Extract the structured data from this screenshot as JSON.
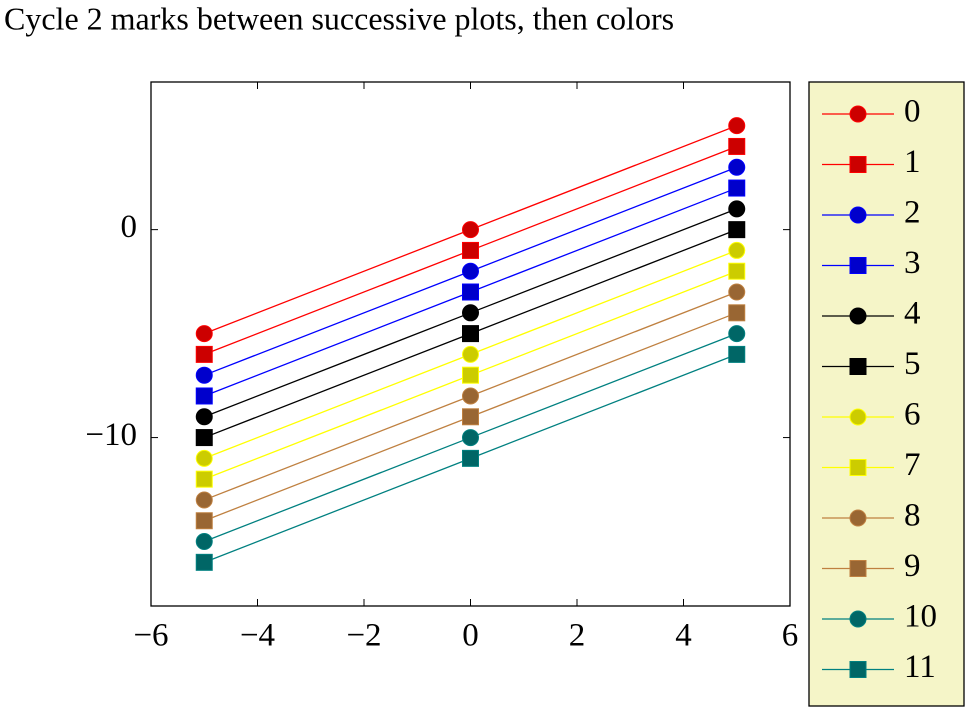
{
  "chart_data": {
    "type": "line",
    "title": "Cycle 2 marks between successive plots, then colors",
    "x": [
      -5,
      0,
      5
    ],
    "series": [
      {
        "name": "0",
        "color": "#ff0000",
        "marker": "circle",
        "values": [
          -5,
          0,
          5
        ]
      },
      {
        "name": "1",
        "color": "#ff0000",
        "marker": "square",
        "values": [
          -6,
          -1,
          4
        ]
      },
      {
        "name": "2",
        "color": "#0000ff",
        "marker": "circle",
        "values": [
          -7,
          -2,
          3
        ]
      },
      {
        "name": "3",
        "color": "#0000ff",
        "marker": "square",
        "values": [
          -8,
          -3,
          2
        ]
      },
      {
        "name": "4",
        "color": "#000000",
        "marker": "circle",
        "values": [
          -9,
          -4,
          1
        ]
      },
      {
        "name": "5",
        "color": "#000000",
        "marker": "square",
        "values": [
          -10,
          -5,
          0
        ]
      },
      {
        "name": "6",
        "color": "#ffff00",
        "marker": "circle",
        "values": [
          -11,
          -6,
          -1
        ]
      },
      {
        "name": "7",
        "color": "#ffff00",
        "marker": "square",
        "values": [
          -12,
          -7,
          -2
        ]
      },
      {
        "name": "8",
        "color": "#bf8040",
        "marker": "circle",
        "values": [
          -13,
          -8,
          -3
        ]
      },
      {
        "name": "9",
        "color": "#bf8040",
        "marker": "square",
        "values": [
          -14,
          -9,
          -4
        ]
      },
      {
        "name": "10",
        "color": "#008080",
        "marker": "circle",
        "values": [
          -15,
          -10,
          -5
        ]
      },
      {
        "name": "11",
        "color": "#008080",
        "marker": "square",
        "values": [
          -16,
          -11,
          -6
        ]
      }
    ],
    "xlim": [
      -6,
      6
    ],
    "xticks": [
      {
        "value": -6,
        "label": "−6"
      },
      {
        "value": -4,
        "label": "−4"
      },
      {
        "value": -2,
        "label": "−2"
      },
      0,
      2,
      4,
      6
    ],
    "ylim": [
      -18.1,
      7.1
    ],
    "yticks": [
      {
        "value": -10,
        "label": "−10"
      },
      0
    ],
    "legend": "outer-right",
    "legend_color": "#f5f5c8"
  }
}
